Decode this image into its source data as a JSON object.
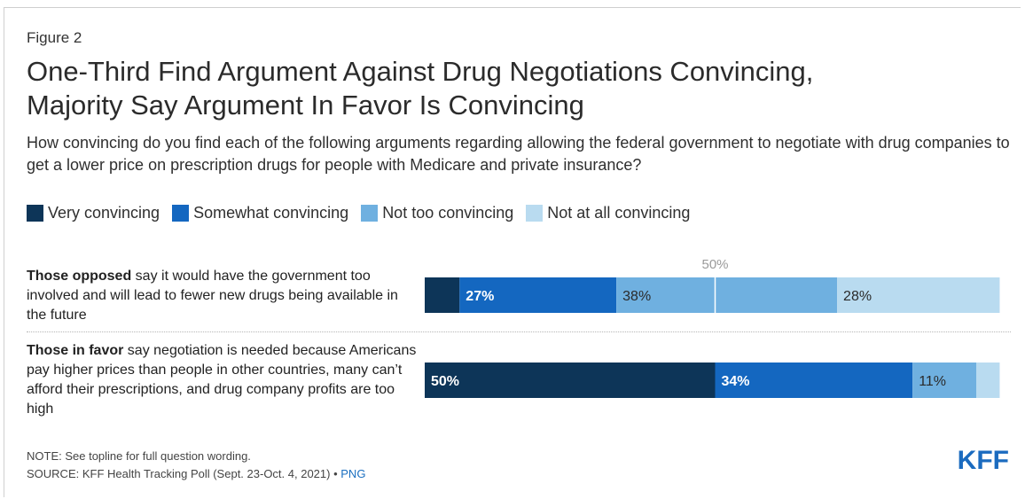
{
  "figure_label": "Figure 2",
  "title_line1": "One-Third Find Argument Against Drug Negotiations Convincing,",
  "title_line2": "Majority Say Argument In Favor Is Convincing",
  "subtitle": "How convincing do you find each of the following arguments regarding allowing the federal government to negotiate with drug companies to get a lower price on prescription drugs for people with Medicare and private insurance?",
  "note": "NOTE: See topline for full question wording.",
  "source": "SOURCE: KFF Health Tracking Poll (Sept. 23-Oct. 4, 2021) •",
  "png_link": "PNG",
  "logo": "KFF",
  "rows": [
    {
      "label_bold": "Those opposed",
      "label_rest": " say it would have the government too involved and will lead to fewer new drugs being available in the future"
    },
    {
      "label_bold": "Those in favor",
      "label_rest": " say negotiation is needed because Americans pay higher prices than people in other countries, many can’t afford their prescriptions, and drug company profits are too high"
    }
  ],
  "colors": {
    "very": "#0d3558",
    "somewhat": "#1467c0",
    "not_too": "#6fb0e0",
    "not_at_all": "#b9dbf0",
    "midline": "#ffffff"
  },
  "chart_data": {
    "type": "bar",
    "orientation": "horizontal",
    "stacked": true,
    "categories": [
      "Those opposed",
      "Those in favor"
    ],
    "series": [
      {
        "name": "Very convincing",
        "values": [
          6,
          50
        ]
      },
      {
        "name": "Somewhat convincing",
        "values": [
          27,
          34
        ]
      },
      {
        "name": "Not too convincing",
        "values": [
          38,
          11
        ]
      },
      {
        "name": "Not at all convincing",
        "values": [
          28,
          4
        ]
      }
    ],
    "value_labels": [
      [
        "",
        "27%",
        "38%",
        "28%"
      ],
      [
        "50%",
        "34%",
        "11%",
        ""
      ]
    ],
    "reference_line": {
      "value": 50,
      "label": "50%"
    },
    "xlim": [
      0,
      100
    ],
    "legend_position": "top"
  }
}
